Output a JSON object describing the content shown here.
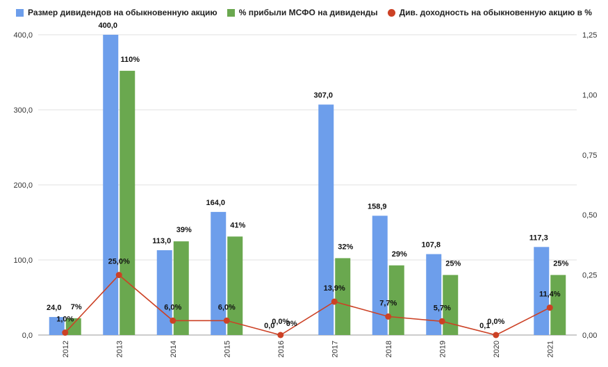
{
  "chart_data": {
    "type": "bar",
    "categories": [
      "2012",
      "2013",
      "2014",
      "2015",
      "2016",
      "2017",
      "2018",
      "2019",
      "2020",
      "2021"
    ],
    "series": [
      {
        "name": "Размер дивидендов на обыкновенную акцию",
        "type": "bar",
        "axis": "left",
        "color": "#6d9eeb",
        "values": [
          24.0,
          400.0,
          113.0,
          164.0,
          0.0,
          307.0,
          158.9,
          107.8,
          0.1,
          117.3
        ],
        "labels": [
          "24,0",
          "400,0",
          "113,0",
          "164,0",
          "0,0",
          "307,0",
          "158,9",
          "107,8",
          "0,1",
          "117,3"
        ]
      },
      {
        "name": "% прибыли МСФО на дивиденды",
        "type": "bar",
        "axis": "right",
        "color": "#6aa84f",
        "values": [
          0.07,
          1.1,
          0.39,
          0.41,
          0.0,
          0.32,
          0.29,
          0.25,
          0.0,
          0.25
        ],
        "labels": [
          "7%",
          "110%",
          "39%",
          "41%",
          "0%",
          "32%",
          "29%",
          "25%",
          "",
          "25%"
        ]
      },
      {
        "name": "Див. доходность на обыкновенную акцию в %",
        "type": "line",
        "axis": "right",
        "color": "#cc4125",
        "values": [
          0.01,
          0.25,
          0.06,
          0.06,
          0.0,
          0.139,
          0.077,
          0.057,
          0.0,
          0.114
        ],
        "labels": [
          "1,0%",
          "25,0%",
          "6,0%",
          "6,0%",
          "0,0%",
          "13,9%",
          "7,7%",
          "5,7%",
          "0,0%",
          "11,4%"
        ]
      }
    ],
    "y_left": {
      "min": 0,
      "max": 400,
      "ticks": [
        0,
        100,
        200,
        300,
        400
      ],
      "tick_labels": [
        "0,0",
        "100,0",
        "200,0",
        "300,0",
        "400,0"
      ]
    },
    "y_right": {
      "min": 0,
      "max": 1.25,
      "ticks": [
        0,
        0.25,
        0.5,
        0.75,
        1.0,
        1.25
      ],
      "tick_labels": [
        "0,00",
        "0,25",
        "0,50",
        "0,75",
        "1,00",
        "1,25"
      ]
    },
    "title": "",
    "xlabel": "",
    "ylabel": "",
    "grid": true,
    "legend": "top"
  }
}
